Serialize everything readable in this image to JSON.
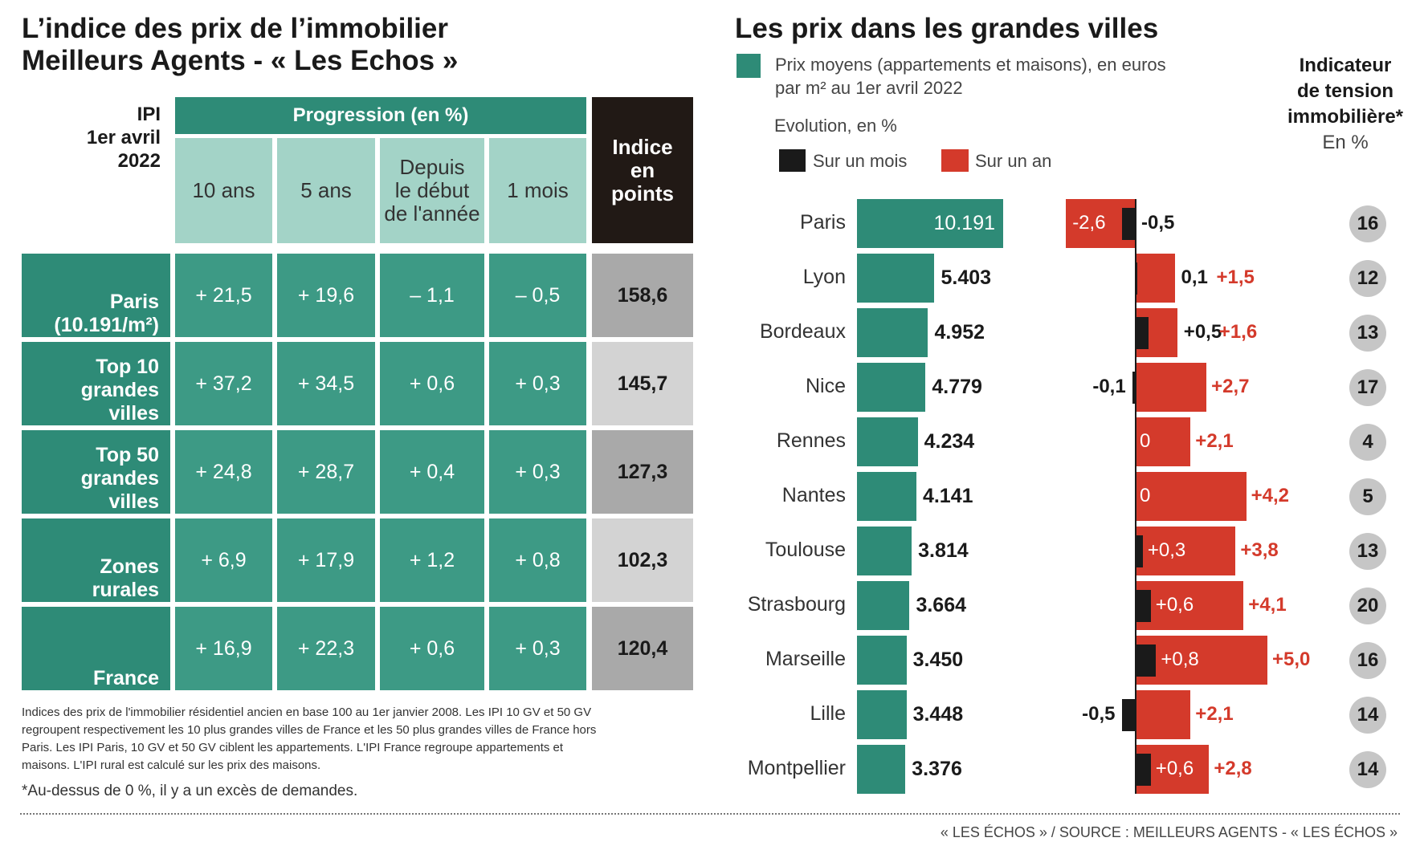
{
  "left": {
    "title_line1": "L’indice des prix de l’immobilier",
    "title_line2": "Meilleurs Agents - « Les Echos »",
    "ipi_label_line1": "IPI",
    "ipi_label_line2": "1er avril",
    "ipi_label_line3": "2022",
    "progression_header": "Progression (en %)",
    "col_10ans": "10 ans",
    "col_5ans": "5 ans",
    "col_depuis_line1": "Depuis",
    "col_depuis_line2": "le début",
    "col_depuis_line3": "de l'année",
    "col_1mois": "1 mois",
    "indice_line1": "Indice",
    "indice_line2": "en",
    "indice_line3": "points",
    "rows": [
      {
        "label_line1": "Paris",
        "label_line2": "(10.191/m²)",
        "label_line3": "",
        "v10": "+ 21,5",
        "v5": "+ 19,6",
        "vdep": "– 1,1",
        "v1m": "– 0,5",
        "indice": "158,6"
      },
      {
        "label_line1": "Top 10",
        "label_line2": "grandes",
        "label_line3": "villes",
        "v10": "+ 37,2",
        "v5": "+ 34,5",
        "vdep": "+ 0,6",
        "v1m": "+ 0,3",
        "indice": "145,7"
      },
      {
        "label_line1": "Top 50",
        "label_line2": "grandes",
        "label_line3": "villes",
        "v10": "+ 24,8",
        "v5": "+ 28,7",
        "vdep": "+ 0,4",
        "v1m": "+ 0,3",
        "indice": "127,3"
      },
      {
        "label_line1": "Zones",
        "label_line2": "rurales",
        "label_line3": "",
        "v10": "+ 6,9",
        "v5": "+ 17,9",
        "vdep": "+ 1,2",
        "v1m": "+ 0,8",
        "indice": "102,3"
      },
      {
        "label_line1": "France",
        "label_line2": "",
        "label_line3": "",
        "v10": "+ 16,9",
        "v5": "+ 22,3",
        "vdep": "+ 0,6",
        "v1m": "+ 0,3",
        "indice": "120,4"
      }
    ],
    "note_line1": "Indices des prix de l'immobilier résidentiel ancien en base 100 au 1er janvier 2008. Les IPI 10 GV et 50 GV",
    "note_line2": "regroupent respectivement les 10 plus grandes villes de France et les 50 plus grandes villes de France hors",
    "note_line3": "Paris. Les IPI Paris, 10 GV et 50 GV ciblent les appartements. L'IPI France regroupe appartements et",
    "note_line4": "maisons. L'IPI rural est calculé sur les prix des maisons.",
    "note_star": "*Au-dessus de 0 %, il y a un excès de demandes."
  },
  "right": {
    "title": "Les prix dans les grandes villes",
    "legend_price_line1": "Prix moyens (appartements et maisons), en euros",
    "legend_price_line2": "par m² au 1er avril 2022",
    "evolution_label": "Evolution, en %",
    "legend_month": "Sur un mois",
    "legend_year": "Sur un an",
    "tension_line1": "Indicateur",
    "tension_line2": "de tension",
    "tension_line3": "immobilière*",
    "tension_line4": "En %"
  },
  "colors": {
    "teal": "#2e8b77",
    "red": "#d43a2b",
    "black": "#1a1a1a"
  },
  "chart_data": {
    "type": "bar",
    "categories": [
      "Paris",
      "Lyon",
      "Bordeaux",
      "Nice",
      "Rennes",
      "Nantes",
      "Toulouse",
      "Strasbourg",
      "Marseille",
      "Lille",
      "Montpellier"
    ],
    "series": [
      {
        "name": "Prix moyens (appartements et maisons), en euros par m² au 1er avril 2022",
        "values": [
          10191,
          5403,
          4952,
          4779,
          4234,
          4141,
          3814,
          3664,
          3450,
          3448,
          3376
        ],
        "labels": [
          "10.191",
          "5.403",
          "4.952",
          "4.779",
          "4.234",
          "4.141",
          "3.814",
          "3.664",
          "3.450",
          "3.448",
          "3.376"
        ]
      },
      {
        "name": "Sur un mois",
        "values": [
          -0.5,
          0.1,
          0.5,
          -0.1,
          0,
          0,
          0.3,
          0.6,
          0.8,
          -0.5,
          0.6
        ],
        "labels": [
          "-0,5",
          "0,1",
          "+0,5",
          "-0,1",
          "0",
          "0",
          "+0,3",
          "+0,6",
          "+0,8",
          "-0,5",
          "+0,6"
        ]
      },
      {
        "name": "Sur un an",
        "values": [
          -2.6,
          1.5,
          1.6,
          2.7,
          2.1,
          4.2,
          3.8,
          4.1,
          5.0,
          2.1,
          2.8
        ],
        "labels": [
          "-2,6",
          "+1,5",
          "+1,6",
          "+2,7",
          "+2,1",
          "+4,2",
          "+3,8",
          "+4,1",
          "+5,0",
          "+2,1",
          "+2,8"
        ]
      },
      {
        "name": "Indicateur de tension immobilière",
        "values": [
          16,
          12,
          13,
          17,
          4,
          5,
          13,
          20,
          16,
          14,
          14
        ]
      }
    ]
  },
  "footer_source": "« LES ÉCHOS » / SOURCE : MEILLEURS AGENTS - « LES ÉCHOS »"
}
